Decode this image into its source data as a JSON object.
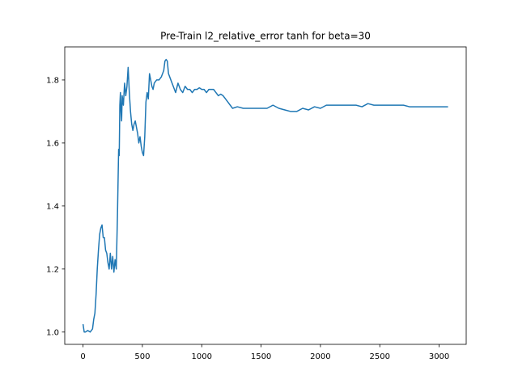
{
  "chart_data": {
    "type": "line",
    "title": "Pre-Train l2_relative_error tanh for beta=30",
    "xlabel": "",
    "ylabel": "",
    "xlim": [
      -154,
      3228
    ],
    "ylim": [
      0.961,
      1.905
    ],
    "grid": false,
    "line_color": "#1f77b4",
    "xticks": [
      0,
      500,
      1000,
      1500,
      2000,
      2500,
      3000
    ],
    "xtick_labels": [
      "0",
      "500",
      "1000",
      "1500",
      "2000",
      "2500",
      "3000"
    ],
    "yticks": [
      1.0,
      1.2,
      1.4,
      1.6,
      1.8
    ],
    "ytick_labels": [
      "1.0",
      "1.2",
      "1.4",
      "1.6",
      "1.8"
    ],
    "series": [
      {
        "x": [
          0,
          10,
          20,
          40,
          60,
          80,
          90,
          100,
          110,
          120,
          130,
          140,
          150,
          160,
          170,
          180,
          190,
          200,
          210,
          220,
          230,
          240,
          250,
          260,
          270,
          280,
          290,
          300,
          305,
          310,
          315,
          320,
          325,
          330,
          340,
          350,
          360,
          370,
          380,
          390,
          400,
          410,
          420,
          430,
          440,
          450,
          460,
          470,
          480,
          490,
          500,
          510,
          520,
          530,
          540,
          550,
          560,
          570,
          580,
          590,
          600,
          620,
          640,
          660,
          680,
          690,
          700,
          710,
          720,
          740,
          760,
          780,
          800,
          820,
          840,
          860,
          880,
          900,
          920,
          940,
          960,
          980,
          1000,
          1020,
          1040,
          1060,
          1080,
          1100,
          1120,
          1140,
          1160,
          1180,
          1200,
          1220,
          1240,
          1260,
          1300,
          1350,
          1400,
          1450,
          1500,
          1550,
          1600,
          1650,
          1700,
          1750,
          1800,
          1850,
          1900,
          1950,
          2000,
          2050,
          2100,
          2150,
          2200,
          2250,
          2300,
          2350,
          2400,
          2450,
          2500,
          2550,
          2600,
          2650,
          2700,
          2750,
          2800,
          2850,
          2900,
          2950,
          3000,
          3050,
          3075
        ],
        "y": [
          1.025,
          1.0,
          1.0,
          1.005,
          1.0,
          1.01,
          1.04,
          1.06,
          1.12,
          1.2,
          1.26,
          1.31,
          1.33,
          1.34,
          1.3,
          1.3,
          1.26,
          1.25,
          1.22,
          1.2,
          1.25,
          1.2,
          1.24,
          1.19,
          1.23,
          1.2,
          1.37,
          1.58,
          1.56,
          1.72,
          1.76,
          1.7,
          1.67,
          1.75,
          1.72,
          1.79,
          1.75,
          1.78,
          1.84,
          1.76,
          1.7,
          1.66,
          1.64,
          1.66,
          1.67,
          1.65,
          1.63,
          1.6,
          1.62,
          1.59,
          1.57,
          1.56,
          1.62,
          1.73,
          1.76,
          1.74,
          1.82,
          1.8,
          1.78,
          1.77,
          1.79,
          1.8,
          1.8,
          1.81,
          1.83,
          1.86,
          1.865,
          1.86,
          1.82,
          1.8,
          1.78,
          1.76,
          1.79,
          1.77,
          1.76,
          1.78,
          1.77,
          1.77,
          1.76,
          1.77,
          1.77,
          1.775,
          1.77,
          1.77,
          1.76,
          1.77,
          1.77,
          1.77,
          1.76,
          1.75,
          1.755,
          1.75,
          1.74,
          1.73,
          1.72,
          1.71,
          1.715,
          1.71,
          1.71,
          1.71,
          1.71,
          1.71,
          1.72,
          1.71,
          1.705,
          1.7,
          1.7,
          1.71,
          1.705,
          1.715,
          1.71,
          1.72,
          1.72,
          1.72,
          1.72,
          1.72,
          1.72,
          1.715,
          1.725,
          1.72,
          1.72,
          1.72,
          1.72,
          1.72,
          1.72,
          1.715,
          1.715,
          1.715,
          1.715,
          1.715,
          1.715,
          1.715,
          1.715
        ]
      }
    ]
  }
}
